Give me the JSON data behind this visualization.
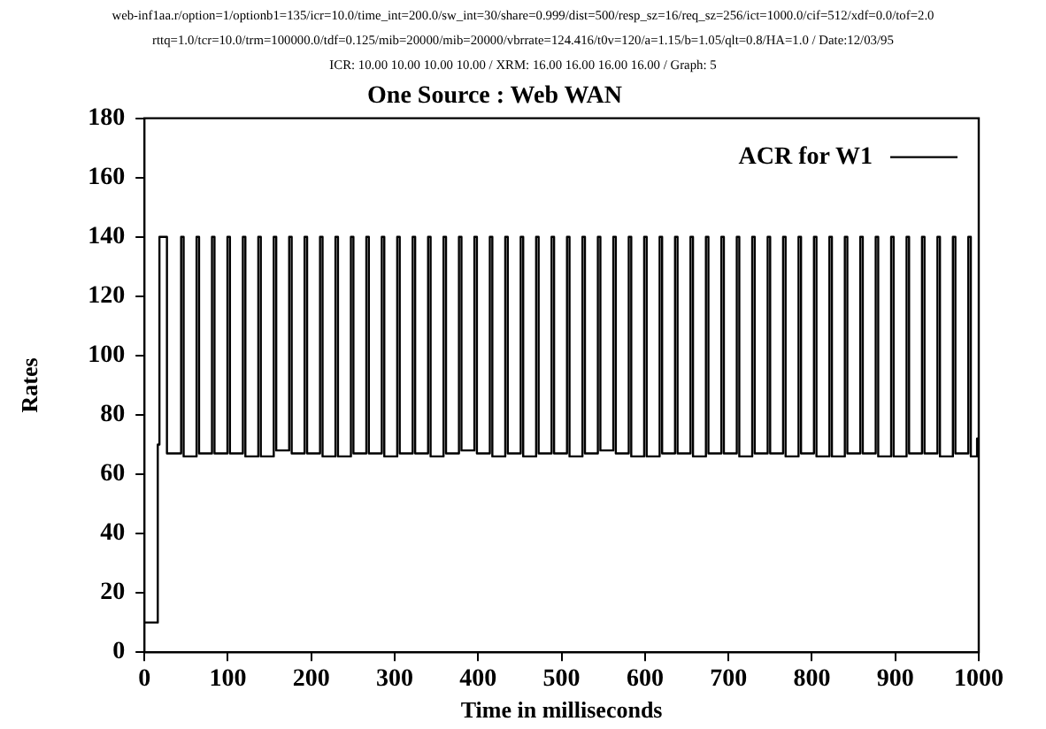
{
  "chart_data": {
    "type": "step",
    "title": "One Source : Web WAN",
    "xlabel": "Time in milliseconds",
    "ylabel": "Rates",
    "annotations": [
      "web-inf1aa.r/option=1/optionb1=135/icr=10.0/time_int=200.0/sw_int=30/share=0.999/dist=500/resp_sz=16/req_sz=256/ict=1000.0/cif=512/xdf=0.0/tof=2.0",
      "rttq=1.0/tcr=10.0/trm=100000.0/tdf=0.125/mib=20000/mib=20000/vbrrate=124.416/t0v=120/a=1.15/b=1.05/qlt=0.8/HA=1.0 / Date:12/03/95",
      "ICR: 10.00 10.00 10.00 10.00 / XRM: 16.00 16.00 16.00 16.00 / Graph: 5"
    ],
    "series": [
      {
        "name": "ACR for W1",
        "color": "#000000",
        "x": [
          0,
          16,
          18,
          27,
          44,
          47,
          62.5,
          65.5,
          81,
          84,
          99.5,
          102.5,
          118,
          121,
          136.5,
          139.5,
          155,
          158,
          173.5,
          176.5,
          192,
          195,
          210.5,
          213.5,
          229,
          232,
          247.5,
          250.5,
          266,
          269,
          284.5,
          287.5,
          303,
          306,
          321.5,
          324.5,
          340,
          343,
          358.5,
          361.5,
          377,
          380,
          395.5,
          398.5,
          414,
          417,
          432.5,
          435.5,
          451,
          454,
          469.5,
          472.5,
          488,
          491,
          506.5,
          509.5,
          525,
          528,
          543.5,
          546.5,
          562,
          565,
          580.5,
          583.5,
          599,
          602,
          617.5,
          620.5,
          636,
          639,
          654.5,
          657.5,
          673,
          676,
          691.5,
          694.5,
          710,
          713,
          728.5,
          731.5,
          747,
          750,
          765.5,
          768.5,
          784,
          787,
          802.5,
          805.5,
          821,
          824,
          839.5,
          842.5,
          858,
          861,
          876.5,
          879.5,
          895,
          898,
          913.5,
          916.5,
          932,
          935,
          950.5,
          953.5,
          969,
          972,
          987.5,
          990.5,
          998,
          1000
        ],
        "values": [
          10,
          70,
          140,
          67,
          140,
          66,
          140,
          67,
          140,
          67,
          140,
          67,
          140,
          66,
          140,
          66,
          140,
          68,
          140,
          67,
          140,
          67,
          140,
          66,
          140,
          66,
          140,
          67,
          140,
          67,
          140,
          66,
          140,
          67,
          140,
          67,
          140,
          66,
          140,
          67,
          140,
          68,
          140,
          67,
          140,
          66,
          140,
          67,
          140,
          66,
          140,
          67,
          140,
          67,
          140,
          66,
          140,
          67,
          140,
          68,
          140,
          67,
          140,
          66,
          140,
          66,
          140,
          67,
          140,
          67,
          140,
          66,
          140,
          67,
          140,
          67,
          140,
          66,
          140,
          67,
          140,
          67,
          140,
          66,
          140,
          67,
          140,
          66,
          140,
          66,
          140,
          67,
          140,
          67,
          140,
          66,
          140,
          66,
          140,
          67,
          140,
          67,
          140,
          66,
          140,
          67,
          140,
          66,
          72,
          72
        ]
      }
    ],
    "xlim": [
      0,
      1000
    ],
    "xticks": [
      0,
      100,
      200,
      300,
      400,
      500,
      600,
      700,
      800,
      900,
      1000
    ],
    "ylim": [
      0,
      180
    ],
    "yticks": [
      0,
      20,
      40,
      60,
      80,
      100,
      120,
      140,
      160,
      180
    ],
    "grid": false,
    "legend": "top right",
    "marker": "none",
    "line_style": "solid"
  }
}
